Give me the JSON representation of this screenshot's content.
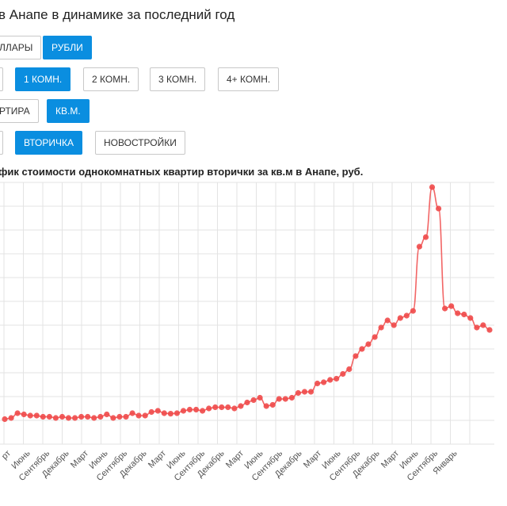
{
  "page_title": "в Анапе в динамике за последний год",
  "buttons": {
    "currency": [
      {
        "label": "ЛЛАРЫ",
        "active": false
      },
      {
        "label": "РУБЛИ",
        "active": true
      }
    ],
    "rooms": [
      {
        "label": "1 КОМН.",
        "active": true
      },
      {
        "label": "2 КОМН.",
        "active": false
      },
      {
        "label": "3 КОМН.",
        "active": false
      },
      {
        "label": "4+ КОМН.",
        "active": false
      }
    ],
    "unit": [
      {
        "label": "РТИРА",
        "active": false
      },
      {
        "label": "КВ.М.",
        "active": true
      }
    ],
    "market": [
      {
        "label": "ВТОРИЧКА",
        "active": true
      },
      {
        "label": "НОВОСТРОЙКИ",
        "active": false
      }
    ]
  },
  "chart_data": {
    "type": "line",
    "title": "фик стоимости однокомнатных квартир вторички за кв.м в Анапе, руб.",
    "color": "#f04a4a",
    "xlabel": "",
    "ylabel": "",
    "ylim": [
      0,
      110
    ],
    "x_tick_labels": [
      "рт",
      "Июнь",
      "Сентябрь",
      "Декабрь",
      "Март",
      "Июнь",
      "Сентябрь",
      "Декабрь",
      "Март",
      "Июнь",
      "Сентябрь",
      "Декабрь",
      "Март",
      "Июнь",
      "Сентябрь",
      "Декабрь",
      "Март",
      "Июнь",
      "Сентябрь",
      "Декабрь",
      "Март",
      "Июнь",
      "Сентябрь",
      "Январь"
    ],
    "values": [
      10.5,
      11,
      13,
      12.5,
      12,
      12,
      11.5,
      11.5,
      11,
      11.5,
      11,
      11,
      11.5,
      11.5,
      11,
      11.5,
      12.5,
      11,
      11.5,
      11.5,
      13,
      12,
      12,
      13.5,
      14,
      13,
      12.8,
      13,
      14,
      14.5,
      14.5,
      14,
      15,
      15.5,
      15.5,
      15.5,
      15,
      16,
      17.5,
      18.5,
      19.5,
      16,
      16.5,
      19,
      19,
      19.5,
      21.5,
      22,
      22,
      25.5,
      26,
      27,
      27.5,
      29.5,
      31.5,
      37,
      40,
      42,
      45,
      49,
      52,
      50,
      53,
      54,
      56,
      83,
      87,
      108,
      99,
      57,
      58,
      55,
      54.5,
      53,
      49,
      50,
      48
    ]
  }
}
